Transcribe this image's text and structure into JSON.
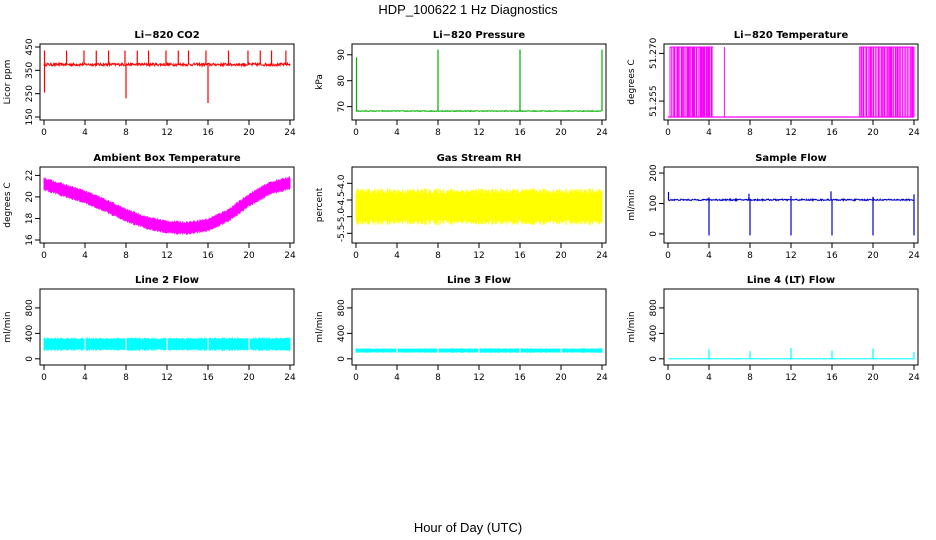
{
  "figure": {
    "title": "HDP_100622  1 Hz Diagnostics",
    "xlabel": "Hour of Day (UTC)"
  },
  "chart_data": [
    {
      "id": "co2",
      "type": "line",
      "title": "Li−820 CO2",
      "ylabel": "Licor ppm",
      "color": "#ff0000",
      "xlim": [
        0,
        24
      ],
      "ylim": [
        150,
        450
      ],
      "xticks": [
        "0",
        "4",
        "8",
        "12",
        "16",
        "20",
        "24"
      ],
      "yticks": [
        "150",
        "250",
        "350",
        "450"
      ],
      "series": [
        {
          "name": "CO2",
          "baseline": 375,
          "noise": 12,
          "spikes_up": [
            0.05,
            2.2,
            3.9,
            5.1,
            6.3,
            7.9,
            9.1,
            10.2,
            11.9,
            13.1,
            14.1,
            15.8,
            18.0,
            19.9,
            21.1,
            22.2,
            23.6
          ],
          "spike_up_to": 435,
          "spikes_down": [
            0.05,
            8.0,
            16.0
          ],
          "spike_down_to": [
            255,
            230,
            210
          ]
        }
      ]
    },
    {
      "id": "pressure",
      "type": "line",
      "title": "Li−820 Pressure",
      "ylabel": "kPa",
      "color": "#00b000",
      "xlim": [
        0,
        24
      ],
      "ylim": [
        66,
        93
      ],
      "xticks": [
        "0",
        "4",
        "8",
        "12",
        "16",
        "20",
        "24"
      ],
      "yticks": [
        "70",
        "80",
        "90"
      ],
      "series": [
        {
          "name": "Pressure",
          "baseline": 68.3,
          "noise": 0.3,
          "spikes_up": [
            0.05,
            8.0,
            16.0,
            24.0
          ],
          "spike_up_to": [
            89,
            92,
            92,
            92
          ]
        }
      ]
    },
    {
      "id": "temperature",
      "type": "bars",
      "title": "Li−820 Temperature",
      "ylabel": "degrees C",
      "color": "#ff00ff",
      "xlim": [
        0,
        24
      ],
      "ylim": [
        51.25,
        51.272
      ],
      "xticks": [
        "0",
        "4",
        "8",
        "12",
        "16",
        "20",
        "24"
      ],
      "yticks": [
        "51.255",
        "51.270"
      ],
      "series": [
        {
          "name": "Temperature",
          "baseline": 51.25,
          "high": 51.272,
          "dense_intervals": [
            [
              0.2,
              4.4
            ],
            [
              18.7,
              24.0
            ]
          ],
          "isolated": [
            5.5
          ]
        }
      ]
    },
    {
      "id": "ambient",
      "type": "band",
      "title": "Ambient Box Temperature",
      "ylabel": "degrees C",
      "color": "#ff00ff",
      "xlim": [
        0,
        24
      ],
      "ylim": [
        16,
        22.5
      ],
      "xticks": [
        "0",
        "4",
        "8",
        "12",
        "16",
        "20",
        "24"
      ],
      "yticks": [
        "16",
        "18",
        "20",
        "22"
      ],
      "series": [
        {
          "name": "Box temperature",
          "points": [
            [
              0,
              21.2
            ],
            [
              2,
              20.6
            ],
            [
              4,
              20.0
            ],
            [
              6,
              19.2
            ],
            [
              8,
              18.3
            ],
            [
              10,
              17.6
            ],
            [
              12,
              17.2
            ],
            [
              14,
              17.1
            ],
            [
              16,
              17.4
            ],
            [
              18,
              18.3
            ],
            [
              20,
              19.7
            ],
            [
              22,
              20.8
            ],
            [
              24,
              21.3
            ]
          ],
          "half_band": 0.65
        }
      ]
    },
    {
      "id": "rh",
      "type": "band",
      "title": "Gas Stream RH",
      "ylabel": "percent",
      "color": "#ffff00",
      "xlim": [
        0,
        24
      ],
      "ylim": [
        -5.7,
        -3.6
      ],
      "xticks": [
        "0",
        "4",
        "8",
        "12",
        "16",
        "20",
        "24"
      ],
      "yticks": [
        "-5.5",
        "-5.0",
        "-4.5",
        "-4.0"
      ],
      "series": [
        {
          "name": "RH",
          "points": [
            [
              0,
              -4.7
            ],
            [
              24,
              -4.7
            ]
          ],
          "half_band": 0.55
        }
      ]
    },
    {
      "id": "sample",
      "type": "line",
      "title": "Sample Flow",
      "ylabel": "ml/min",
      "color": "#0000cc",
      "xlim": [
        0,
        24
      ],
      "ylim": [
        -20,
        210
      ],
      "xticks": [
        "0",
        "4",
        "8",
        "12",
        "16",
        "20",
        "24"
      ],
      "yticks": [
        "0",
        "100",
        "200"
      ],
      "series": [
        {
          "name": "Sample flow",
          "baseline": 112,
          "noise": 5,
          "spikes_up": [
            0.05,
            4.0,
            7.9,
            12.0,
            15.9,
            20.0,
            24.0
          ],
          "spike_up_to": [
            138,
            120,
            132,
            125,
            140,
            122,
            130
          ],
          "spikes_down": [
            4.0,
            8.0,
            12.0,
            16.0,
            20.0,
            24.0
          ],
          "spike_down_to": [
            -5,
            -5,
            -5,
            -5,
            -5,
            -5
          ]
        }
      ]
    },
    {
      "id": "line2",
      "type": "band",
      "title": "Line 2 Flow",
      "ylabel": "ml/min",
      "color": "#00ffff",
      "xlim": [
        0,
        24
      ],
      "ylim": [
        -50,
        1050
      ],
      "xticks": [
        "0",
        "4",
        "8",
        "12",
        "16",
        "20",
        "24"
      ],
      "yticks": [
        "0",
        "400",
        "800"
      ],
      "series": [
        {
          "name": "Line 2",
          "points": [
            [
              0,
              230
            ],
            [
              24,
              230
            ]
          ],
          "half_band": 105,
          "gaps": [
            4.0,
            8.0,
            12.0,
            16.0,
            20.0
          ]
        }
      ]
    },
    {
      "id": "line3",
      "type": "band",
      "title": "Line 3 Flow",
      "ylabel": "ml/min",
      "color": "#00ffff",
      "xlim": [
        0,
        24
      ],
      "ylim": [
        -50,
        1050
      ],
      "xticks": [
        "0",
        "4",
        "8",
        "12",
        "16",
        "20",
        "24"
      ],
      "yticks": [
        "0",
        "400",
        "800"
      ],
      "series": [
        {
          "name": "Line 3",
          "points": [
            [
              0,
              130
            ],
            [
              24,
              130
            ]
          ],
          "half_band": 35,
          "gaps": [
            4.0,
            8.0,
            12.0,
            16.0,
            20.0
          ]
        }
      ]
    },
    {
      "id": "line4",
      "type": "line",
      "title": "Line 4 (LT) Flow",
      "ylabel": "ml/min",
      "color": "#00ffff",
      "xlim": [
        0,
        24
      ],
      "ylim": [
        -50,
        1050
      ],
      "xticks": [
        "0",
        "4",
        "8",
        "12",
        "16",
        "20",
        "24"
      ],
      "yticks": [
        "0",
        "400",
        "800"
      ],
      "series": [
        {
          "name": "Line 4",
          "baseline": 0,
          "noise": 5,
          "spikes_up": [
            4.0,
            8.0,
            12.0,
            16.0,
            20.0,
            24.0
          ],
          "spike_up_to": [
            150,
            120,
            170,
            130,
            160,
            110
          ]
        }
      ]
    }
  ]
}
